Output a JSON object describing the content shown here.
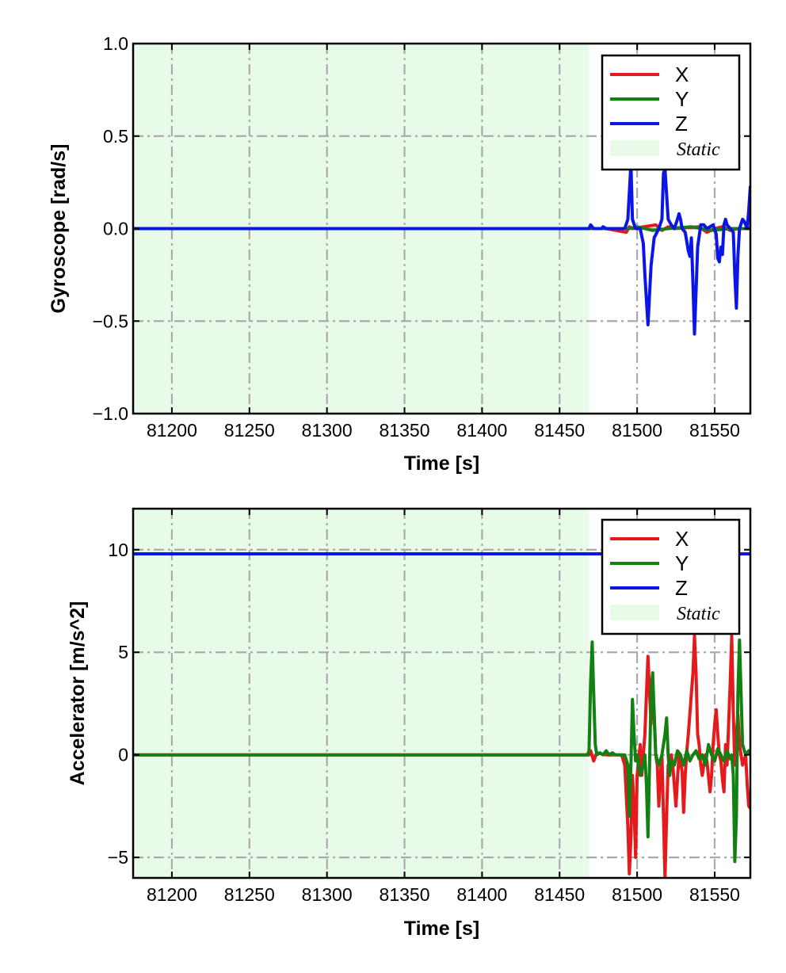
{
  "chart_data": [
    {
      "type": "line",
      "xlabel": "Time [s]",
      "ylabel": "Gyroscope [rad/s]",
      "xlim": [
        81175,
        81573
      ],
      "ylim": [
        -1.0,
        1.0
      ],
      "xticks": [
        81200,
        81250,
        81300,
        81350,
        81400,
        81450,
        81500,
        81550
      ],
      "xtick_labels": [
        "81200",
        "81250",
        "81300",
        "81350",
        "81400",
        "81450",
        "81500",
        "81550"
      ],
      "yticks": [
        -1.0,
        -0.5,
        0.0,
        0.5,
        1.0
      ],
      "ytick_labels": [
        "−1.0",
        "−0.5",
        "0.0",
        "0.5",
        "1.0"
      ],
      "grid": true,
      "legend_position": "top-right",
      "static_region": {
        "label": "Static",
        "x_start": 81175,
        "x_end": 81469,
        "color": "#e8fbe8"
      },
      "series": [
        {
          "name": "X",
          "color": "#e41a1c",
          "points": [
            [
              81175,
              0
            ],
            [
              81469,
              0
            ],
            [
              81480,
              0.0
            ],
            [
              81493,
              -0.02
            ],
            [
              81495,
              0.01
            ],
            [
              81497,
              0
            ],
            [
              81512,
              0.02
            ],
            [
              81516,
              -0.01
            ],
            [
              81520,
              0.01
            ],
            [
              81524,
              0
            ],
            [
              81540,
              0.01
            ],
            [
              81545,
              -0.02
            ],
            [
              81550,
              0.0
            ],
            [
              81555,
              0.01
            ],
            [
              81560,
              -0.01
            ],
            [
              81565,
              0.0
            ],
            [
              81573,
              0
            ]
          ]
        },
        {
          "name": "Y",
          "color": "#138013",
          "points": [
            [
              81175,
              0
            ],
            [
              81469,
              0
            ],
            [
              81495,
              0.0
            ],
            [
              81500,
              0.01
            ],
            [
              81510,
              -0.01
            ],
            [
              81520,
              0.0
            ],
            [
              81535,
              0.01
            ],
            [
              81548,
              -0.01
            ],
            [
              81560,
              0.0
            ],
            [
              81573,
              0
            ]
          ]
        },
        {
          "name": "Z",
          "color": "#0a16e6",
          "points": [
            [
              81175,
              0
            ],
            [
              81469,
              0
            ],
            [
              81470,
              0.02
            ],
            [
              81472,
              0
            ],
            [
              81477,
              0
            ],
            [
              81478,
              0.01
            ],
            [
              81480,
              0
            ],
            [
              81492,
              0
            ],
            [
              81494,
              0.05
            ],
            [
              81496,
              0.35
            ],
            [
              81497,
              0.05
            ],
            [
              81499,
              0
            ],
            [
              81502,
              0
            ],
            [
              81504,
              -0.08
            ],
            [
              81505,
              -0.25
            ],
            [
              81507,
              -0.52
            ],
            [
              81509,
              -0.2
            ],
            [
              81511,
              -0.05
            ],
            [
              81514,
              0
            ],
            [
              81516,
              0.05
            ],
            [
              81517,
              0.3
            ],
            [
              81518,
              0.32
            ],
            [
              81520,
              0.05
            ],
            [
              81522,
              0.02
            ],
            [
              81524,
              0
            ],
            [
              81526,
              0.05
            ],
            [
              81527,
              0.08
            ],
            [
              81528,
              0.05
            ],
            [
              81529,
              0
            ],
            [
              81531,
              -0.02
            ],
            [
              81533,
              -0.12
            ],
            [
              81534,
              -0.15
            ],
            [
              81535,
              -0.05
            ],
            [
              81536,
              -0.3
            ],
            [
              81537,
              -0.57
            ],
            [
              81539,
              -0.1
            ],
            [
              81541,
              0.02
            ],
            [
              81543,
              0.02
            ],
            [
              81545,
              0.0
            ],
            [
              81547,
              0.01
            ],
            [
              81549,
              0.02
            ],
            [
              81551,
              -0.03
            ],
            [
              81552,
              -0.16
            ],
            [
              81553,
              -0.18
            ],
            [
              81554,
              -0.1
            ],
            [
              81555,
              -0.14
            ],
            [
              81556,
              0.02
            ],
            [
              81557,
              0.05
            ],
            [
              81558,
              0.02
            ],
            [
              81560,
              0
            ],
            [
              81562,
              -0.02
            ],
            [
              81563,
              -0.25
            ],
            [
              81564,
              -0.43
            ],
            [
              81565,
              -0.15
            ],
            [
              81566,
              0
            ],
            [
              81568,
              0.05
            ],
            [
              81569,
              0.04
            ],
            [
              81571,
              0
            ],
            [
              81572,
              0.1
            ],
            [
              81573,
              0.23
            ]
          ]
        }
      ]
    },
    {
      "type": "line",
      "xlabel": "Time [s]",
      "ylabel": "Accelerator [m/s^2]",
      "xlim": [
        81175,
        81573
      ],
      "ylim": [
        -6,
        12
      ],
      "xticks": [
        81200,
        81250,
        81300,
        81350,
        81400,
        81450,
        81500,
        81550
      ],
      "xtick_labels": [
        "81200",
        "81250",
        "81300",
        "81350",
        "81400",
        "81450",
        "81500",
        "81550"
      ],
      "yticks": [
        -5,
        0,
        5,
        10
      ],
      "ytick_labels": [
        "−5",
        "0",
        "5",
        "10"
      ],
      "grid": true,
      "legend_position": "top-right",
      "static_region": {
        "label": "Static",
        "x_start": 81175,
        "x_end": 81469,
        "color": "#e8fbe8"
      },
      "series": [
        {
          "name": "X",
          "color": "#e41a1c",
          "points": [
            [
              81175,
              0
            ],
            [
              81469,
              0
            ],
            [
              81470,
              0.2
            ],
            [
              81472,
              -0.3
            ],
            [
              81474,
              0.1
            ],
            [
              81480,
              0
            ],
            [
              81490,
              0
            ],
            [
              81492,
              -0.5
            ],
            [
              81494,
              -3.5
            ],
            [
              81495,
              -5.8
            ],
            [
              81496,
              -4
            ],
            [
              81497,
              -1
            ],
            [
              81498,
              -2.5
            ],
            [
              81499,
              -5
            ],
            [
              81500,
              -1
            ],
            [
              81502,
              0.5
            ],
            [
              81503,
              -1
            ],
            [
              81505,
              1
            ],
            [
              81506,
              3
            ],
            [
              81507,
              4.8
            ],
            [
              81508,
              3
            ],
            [
              81509,
              1.5
            ],
            [
              81510,
              3.5
            ],
            [
              81511,
              2
            ],
            [
              81512,
              0
            ],
            [
              81513,
              -0.5
            ],
            [
              81514,
              -2.5
            ],
            [
              81515,
              -1
            ],
            [
              81516,
              0
            ],
            [
              81517,
              -3
            ],
            [
              81518,
              -6
            ],
            [
              81519,
              -3
            ],
            [
              81520,
              -0.5
            ],
            [
              81521,
              -1
            ],
            [
              81522,
              0
            ],
            [
              81523,
              -0.5
            ],
            [
              81525,
              -2.5
            ],
            [
              81526,
              -1.2
            ],
            [
              81527,
              0
            ],
            [
              81529,
              -0.8
            ],
            [
              81530,
              -2.8
            ],
            [
              81531,
              -1
            ],
            [
              81532,
              0.2
            ],
            [
              81533,
              1
            ],
            [
              81534,
              2
            ],
            [
              81535,
              3
            ],
            [
              81536,
              4
            ],
            [
              81537,
              5.8
            ],
            [
              81538,
              4
            ],
            [
              81539,
              1
            ],
            [
              81540,
              0.5
            ],
            [
              81541,
              -0.5
            ],
            [
              81542,
              -1
            ],
            [
              81544,
              0
            ],
            [
              81545,
              -0.3
            ],
            [
              81547,
              -1.8
            ],
            [
              81548,
              -1
            ],
            [
              81549,
              0.5
            ],
            [
              81550,
              1.5
            ],
            [
              81551,
              2.2
            ],
            [
              81552,
              1
            ],
            [
              81553,
              0
            ],
            [
              81554,
              -0.3
            ],
            [
              81555,
              -1.2
            ],
            [
              81556,
              -1.8
            ],
            [
              81557,
              0.5
            ],
            [
              81558,
              -0.5
            ],
            [
              81559,
              1.5
            ],
            [
              81560,
              3.5
            ],
            [
              81561,
              5.8
            ],
            [
              81562,
              2
            ],
            [
              81563,
              -0.5
            ],
            [
              81564,
              1
            ],
            [
              81565,
              2
            ],
            [
              81566,
              0.5
            ],
            [
              81568,
              -0.5
            ],
            [
              81570,
              0
            ],
            [
              81571,
              -1.5
            ],
            [
              81572,
              -2.5
            ],
            [
              81573,
              -2.6
            ]
          ]
        },
        {
          "name": "Y",
          "color": "#138013",
          "points": [
            [
              81175,
              0
            ],
            [
              81468,
              0
            ],
            [
              81469,
              0.2
            ],
            [
              81470,
              3.5
            ],
            [
              81471,
              5.5
            ],
            [
              81472,
              3
            ],
            [
              81473,
              0.5
            ],
            [
              81474,
              0
            ],
            [
              81476,
              0.1
            ],
            [
              81478,
              0
            ],
            [
              81480,
              0.2
            ],
            [
              81482,
              0
            ],
            [
              81484,
              0.1
            ],
            [
              81486,
              0
            ],
            [
              81490,
              0
            ],
            [
              81492,
              0
            ],
            [
              81494,
              -0.5
            ],
            [
              81495,
              -3
            ],
            [
              81496,
              -0.5
            ],
            [
              81497,
              2.7
            ],
            [
              81498,
              1
            ],
            [
              81499,
              -0.3
            ],
            [
              81500,
              0
            ],
            [
              81502,
              -1
            ],
            [
              81504,
              -0.5
            ],
            [
              81505,
              0
            ],
            [
              81506,
              -1.5
            ],
            [
              81507,
              -4
            ],
            [
              81508,
              -0.5
            ],
            [
              81509,
              3
            ],
            [
              81510,
              4
            ],
            [
              81511,
              2
            ],
            [
              81512,
              0
            ],
            [
              81514,
              -0.5
            ],
            [
              81516,
              0
            ],
            [
              81518,
              1
            ],
            [
              81519,
              1.8
            ],
            [
              81520,
              0
            ],
            [
              81521,
              -1
            ],
            [
              81522,
              -0.3
            ],
            [
              81524,
              -0.5
            ],
            [
              81526,
              0.2
            ],
            [
              81528,
              0
            ],
            [
              81530,
              -0.5
            ],
            [
              81532,
              0.2
            ],
            [
              81534,
              -0.3
            ],
            [
              81536,
              0
            ],
            [
              81538,
              0.2
            ],
            [
              81540,
              -0.2
            ],
            [
              81542,
              0
            ],
            [
              81544,
              -0.5
            ],
            [
              81546,
              0.5
            ],
            [
              81548,
              0
            ],
            [
              81550,
              -0.3
            ],
            [
              81552,
              0.3
            ],
            [
              81554,
              0
            ],
            [
              81556,
              -0.3
            ],
            [
              81558,
              0.2
            ],
            [
              81560,
              -0.2
            ],
            [
              81561,
              0
            ],
            [
              81562,
              -1
            ],
            [
              81563,
              -5.2
            ],
            [
              81564,
              -3
            ],
            [
              81565,
              3
            ],
            [
              81566,
              5.6
            ],
            [
              81567,
              3
            ],
            [
              81568,
              0.5
            ],
            [
              81570,
              0
            ],
            [
              81572,
              0.2
            ],
            [
              81573,
              0
            ]
          ]
        },
        {
          "name": "Z",
          "color": "#0a16e6",
          "points": [
            [
              81175,
              9.8
            ],
            [
              81560,
              9.8
            ],
            [
              81567,
              9.8
            ],
            [
              81570,
              9.8
            ],
            [
              81573,
              9.8
            ]
          ],
          "gaps": [
            [
              81561,
              81567
            ]
          ]
        }
      ]
    }
  ],
  "legend": {
    "entries": [
      "X",
      "Y",
      "Z"
    ],
    "static_label": "Static"
  }
}
